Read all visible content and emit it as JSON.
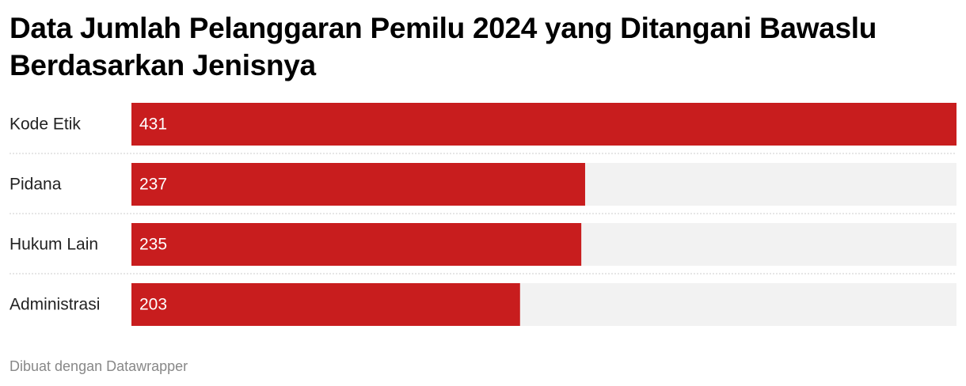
{
  "chart_data": {
    "type": "bar",
    "orientation": "horizontal",
    "title": "Data Jumlah Pelanggaran Pemilu 2024 yang Ditangani Bawaslu Berdasarkan Jenisnya",
    "categories": [
      "Kode Etik",
      "Pidana",
      "Hukum Lain",
      "Administrasi"
    ],
    "values": [
      431,
      237,
      235,
      203
    ],
    "color": "#c81d1e",
    "xlim": [
      0,
      431
    ],
    "footer": "Dibuat dengan Datawrapper"
  }
}
